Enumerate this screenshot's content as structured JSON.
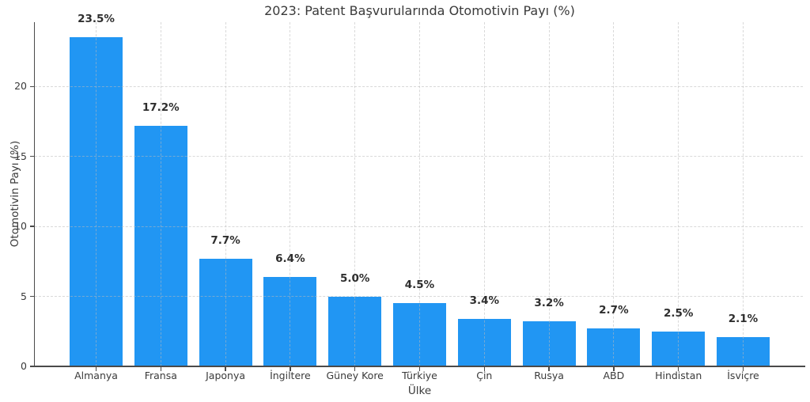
{
  "chart_data": {
    "type": "bar",
    "title": "2023: Patent Başvurularında Otomotivin Payı (%)",
    "xlabel": "Ülke",
    "ylabel": "Otomotivin Payı (%)",
    "categories": [
      "Almanya",
      "Fransa",
      "Japonya",
      "İngiltere",
      "Güney Kore",
      "Türkiye",
      "Çin",
      "Rusya",
      "ABD",
      "Hindistan",
      "İsviçre"
    ],
    "values": [
      23.5,
      17.2,
      7.7,
      6.4,
      5.0,
      4.5,
      3.4,
      3.2,
      2.7,
      2.5,
      2.1
    ],
    "value_labels": [
      "23.5%",
      "17.2%",
      "7.7%",
      "6.4%",
      "5.0%",
      "4.5%",
      "3.4%",
      "3.2%",
      "2.7%",
      "2.5%",
      "2.1%"
    ],
    "yticks": [
      0,
      5,
      10,
      15,
      20
    ],
    "ylim": [
      0,
      24.6
    ],
    "grid": true,
    "legend": false,
    "bar_color": "#2196F3",
    "axis_color": "#4a4a4a",
    "grid_color": "#b9b9b9",
    "text_color": "#3a3a3a"
  }
}
